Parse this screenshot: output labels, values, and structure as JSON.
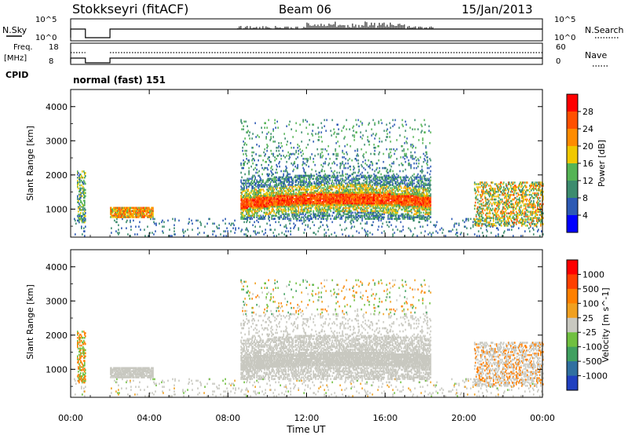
{
  "header": {
    "station": "Stokkseyri (fitACF)",
    "beam": "Beam 06",
    "date": "15/Jan/2013"
  },
  "top_panels": {
    "nsky_label": "N.Sky",
    "nsearch_label": "N.Search",
    "freq_label": "Freq.",
    "freq_unit": "[MHz]",
    "nave_label": "Nave",
    "cpid_label": "CPID",
    "cpid_value": "normal (fast) 151",
    "noise_ticks": [
      "10^5",
      "10^0"
    ],
    "freq_ticks": [
      "18",
      "8"
    ],
    "nave_ticks": [
      "60",
      "0"
    ]
  },
  "chart_data": [
    {
      "type": "heatmap",
      "name": "power",
      "xlabel": "",
      "ylabel": "Slant Range [km]",
      "x_ticks": [
        "00:00",
        "04:00",
        "08:00",
        "12:00",
        "16:00",
        "20:00",
        "00:00"
      ],
      "y_ticks": [
        1000,
        2000,
        3000,
        4000
      ],
      "ylim": [
        180,
        4500
      ],
      "colorbar_label": "Power [dB]",
      "colorbar_ticks": [
        4,
        8,
        12,
        16,
        20,
        24,
        28
      ],
      "colorbar_colors": [
        "#0000ff",
        "#2d5ab4",
        "#3c8c6e",
        "#55b455",
        "#f0c800",
        "#ff8c00",
        "#ff5000",
        "#ff0000"
      ]
    },
    {
      "type": "heatmap",
      "name": "velocity",
      "xlabel": "Time UT",
      "ylabel": "Slant Range [km]",
      "x_ticks": [
        "00:00",
        "04:00",
        "08:00",
        "12:00",
        "16:00",
        "20:00",
        "00:00"
      ],
      "y_ticks": [
        1000,
        2000,
        3000,
        4000
      ],
      "ylim": [
        180,
        4500
      ],
      "colorbar_label": "Velocity [m s^-1]",
      "colorbar_ticks": [
        "1000",
        "500",
        "100",
        "25",
        "-25",
        "-100",
        "-500",
        "-1000"
      ],
      "colorbar_colors": [
        "#2040c0",
        "#3070a0",
        "#40a060",
        "#70c040",
        "#c8c8c0",
        "#f0a020",
        "#ff8000",
        "#ff4000",
        "#ff0000"
      ]
    }
  ]
}
